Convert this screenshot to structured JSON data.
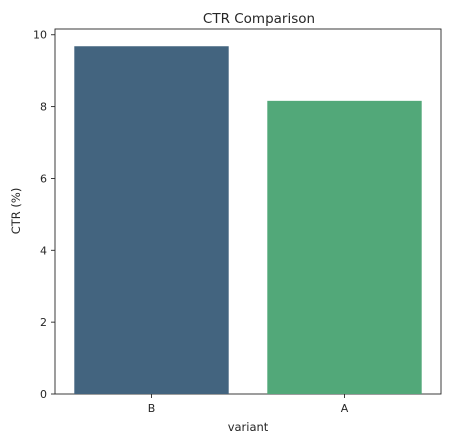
{
  "chart_data": {
    "type": "bar",
    "title": "CTR Comparison",
    "xlabel": "variant",
    "ylabel": "CTR (%)",
    "categories": [
      "B",
      "A"
    ],
    "values": [
      9.68,
      8.16
    ],
    "ylim": [
      0,
      10.16
    ],
    "yticks": [
      0,
      2,
      4,
      6,
      8,
      10
    ],
    "colors": [
      "#43647f",
      "#52a879"
    ],
    "grid": false,
    "legend": "none"
  }
}
